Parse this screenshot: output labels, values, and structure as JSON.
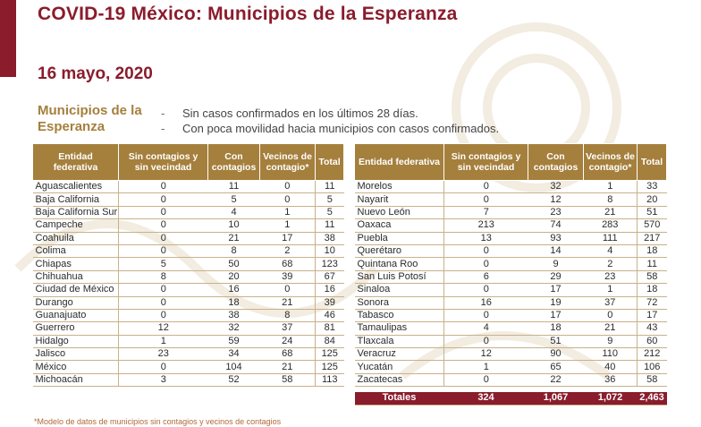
{
  "header": {
    "title": "COVID-19 México: Municipios de la Esperanza",
    "date": "16 mayo, 2020"
  },
  "intro": {
    "label": "Municipios de la Esperanza",
    "bullets": [
      {
        "dash": "-",
        "text": "Sin casos confirmados en los últimos 28 días."
      },
      {
        "dash": "-",
        "text": "Con poca movilidad hacia municipios con casos confirmados."
      }
    ]
  },
  "columns": [
    "Entidad federativa",
    "Sin contagios y sin vecindad",
    "Con contagios",
    "Vecinos de contagio*",
    "Total"
  ],
  "left_rows": [
    [
      "Aguascalientes",
      "0",
      "11",
      "0",
      "11"
    ],
    [
      "Baja California",
      "0",
      "5",
      "0",
      "5"
    ],
    [
      "Baja California Sur",
      "0",
      "4",
      "1",
      "5"
    ],
    [
      "Campeche",
      "0",
      "10",
      "1",
      "11"
    ],
    [
      "Coahuila",
      "0",
      "21",
      "17",
      "38"
    ],
    [
      "Colima",
      "0",
      "8",
      "2",
      "10"
    ],
    [
      "Chiapas",
      "5",
      "50",
      "68",
      "123"
    ],
    [
      "Chihuahua",
      "8",
      "20",
      "39",
      "67"
    ],
    [
      "Ciudad de México",
      "0",
      "16",
      "0",
      "16"
    ],
    [
      "Durango",
      "0",
      "18",
      "21",
      "39"
    ],
    [
      "Guanajuato",
      "0",
      "38",
      "8",
      "46"
    ],
    [
      "Guerrero",
      "12",
      "32",
      "37",
      "81"
    ],
    [
      "Hidalgo",
      "1",
      "59",
      "24",
      "84"
    ],
    [
      "Jalisco",
      "23",
      "34",
      "68",
      "125"
    ],
    [
      "México",
      "0",
      "104",
      "21",
      "125"
    ],
    [
      "Michoacán",
      "3",
      "52",
      "58",
      "113"
    ]
  ],
  "right_rows": [
    [
      "Morelos",
      "0",
      "32",
      "1",
      "33"
    ],
    [
      "Nayarit",
      "0",
      "12",
      "8",
      "20"
    ],
    [
      "Nuevo León",
      "7",
      "23",
      "21",
      "51"
    ],
    [
      "Oaxaca",
      "213",
      "74",
      "283",
      "570"
    ],
    [
      "Puebla",
      "13",
      "93",
      "111",
      "217"
    ],
    [
      "Querétaro",
      "0",
      "14",
      "4",
      "18"
    ],
    [
      "Quintana Roo",
      "0",
      "9",
      "2",
      "11"
    ],
    [
      "San Luis Potosí",
      "6",
      "29",
      "23",
      "58"
    ],
    [
      "Sinaloa",
      "0",
      "17",
      "1",
      "18"
    ],
    [
      "Sonora",
      "16",
      "19",
      "37",
      "72"
    ],
    [
      "Tabasco",
      "0",
      "17",
      "0",
      "17"
    ],
    [
      "Tamaulipas",
      "4",
      "18",
      "21",
      "43"
    ],
    [
      "Tlaxcala",
      "0",
      "51",
      "9",
      "60"
    ],
    [
      "Veracruz",
      "12",
      "90",
      "110",
      "212"
    ],
    [
      "Yucatán",
      "1",
      "65",
      "40",
      "106"
    ],
    [
      "Zacatecas",
      "0",
      "22",
      "36",
      "58"
    ]
  ],
  "totals": [
    "Totales",
    "324",
    "1,067",
    "1,072",
    "2,463"
  ],
  "footnote": "*Modelo de datos de municipios sin contagios y vecinos de contagios",
  "colors": {
    "title": "#8a1c2c",
    "header_fill": "#a57f3c",
    "totals_fill": "#8a1c2c",
    "label": "#a57f3c"
  }
}
